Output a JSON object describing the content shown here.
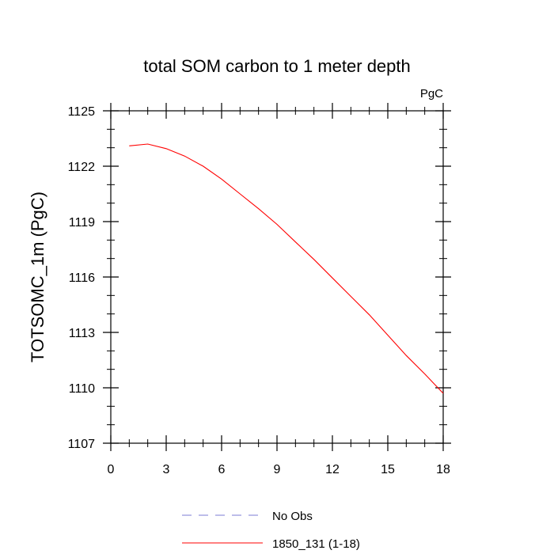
{
  "chart_data": {
    "type": "line",
    "title": "total SOM carbon to 1 meter depth",
    "units_label": "PgC",
    "xlabel": "",
    "ylabel": "TOTSOMC_1m  (PgC)",
    "xlim": [
      0,
      18
    ],
    "ylim": [
      1107,
      1125
    ],
    "x_ticks": [
      0,
      3,
      6,
      9,
      12,
      15,
      18
    ],
    "y_ticks": [
      1107,
      1110,
      1113,
      1116,
      1119,
      1122,
      1125
    ],
    "x_tick_labels": [
      "0",
      "3",
      "6",
      "9",
      "12",
      "15",
      "18"
    ],
    "y_tick_labels": [
      "1107",
      "1110",
      "1113",
      "1116",
      "1119",
      "1122",
      "1125"
    ],
    "grid": false,
    "legend_position": "bottom",
    "series": [
      {
        "name": "No Obs",
        "style": "dashed",
        "color": "#7b7bd6",
        "x": [],
        "values": []
      },
      {
        "name": "1850_131 (1-18)",
        "style": "solid",
        "color": "#ff0000",
        "x": [
          1,
          2,
          3,
          4,
          5,
          6,
          7,
          8,
          9,
          10,
          11,
          12,
          13,
          14,
          15,
          16,
          17,
          18
        ],
        "values": [
          1123.1,
          1123.2,
          1122.95,
          1122.55,
          1122.0,
          1121.3,
          1120.5,
          1119.7,
          1118.85,
          1117.9,
          1116.95,
          1115.95,
          1114.95,
          1113.95,
          1112.85,
          1111.75,
          1110.75,
          1109.7
        ]
      }
    ]
  }
}
